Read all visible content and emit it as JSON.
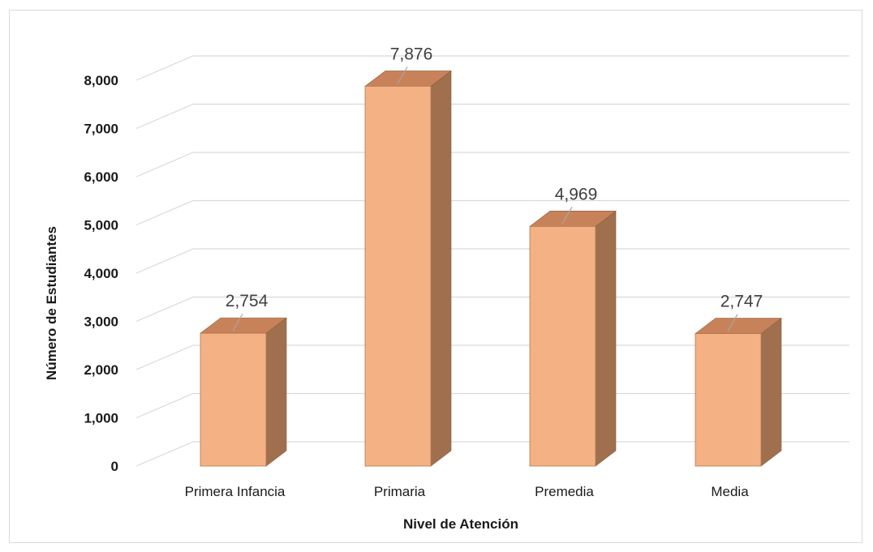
{
  "chart_data": {
    "type": "bar",
    "categories": [
      "Primera Infancia",
      "Primaria",
      "Premedia",
      "Media"
    ],
    "values": [
      2754,
      7876,
      4969,
      2747
    ],
    "data_labels": [
      "2,754",
      "7,876",
      "4,969",
      "2,747"
    ],
    "title": "",
    "xlabel": "Nivel de Atención",
    "ylabel": "Número de Estudiantes",
    "ylim": [
      0,
      8000
    ],
    "yticks": [
      0,
      1000,
      2000,
      3000,
      4000,
      5000,
      6000,
      7000,
      8000
    ],
    "ytick_labels": [
      "0",
      "1,000",
      "2,000",
      "3,000",
      "4,000",
      "5,000",
      "6,000",
      "7,000",
      "8,000"
    ],
    "grid": true,
    "legend": "none",
    "style": "3d-column",
    "colors": {
      "bar_front": "#f4b183",
      "bar_top": "#c8825a",
      "bar_side": "#a0704e",
      "grid": "#d9d9d9",
      "leader": "#a6a6a6"
    }
  }
}
